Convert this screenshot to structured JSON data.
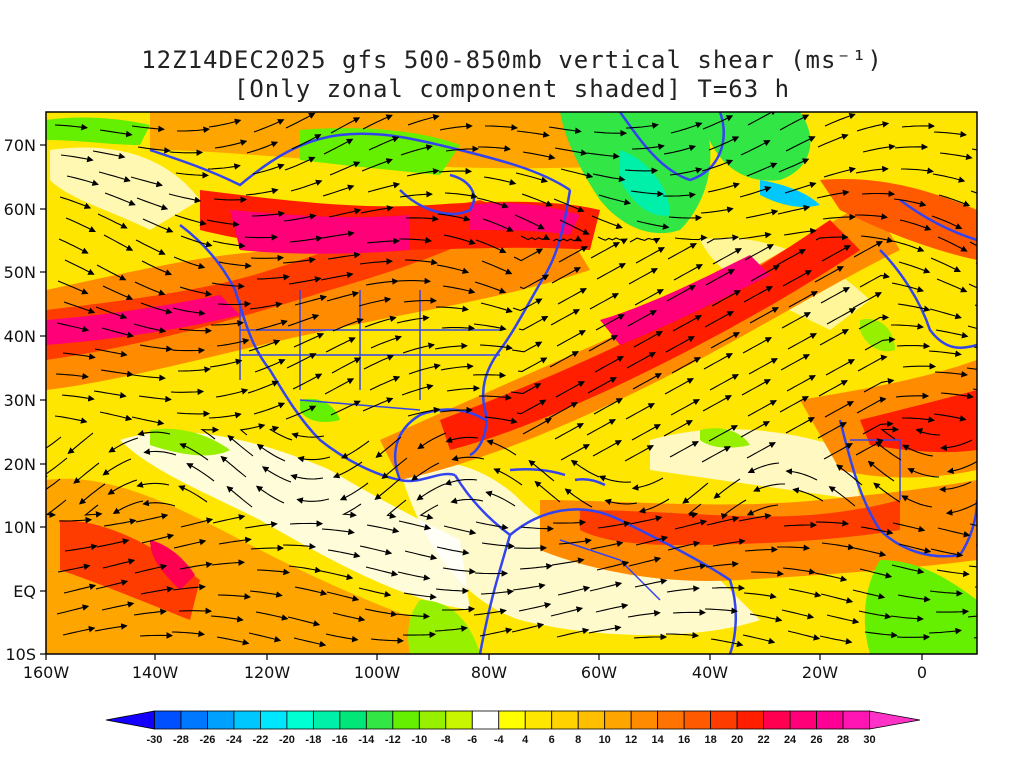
{
  "title": {
    "line1": "12Z14DEC2025 gfs 500-850mb vertical shear (ms⁻¹)",
    "line2": "[Only zonal component shaded] T=63 h"
  },
  "axes": {
    "lon_ticks": [
      "160W",
      "140W",
      "120W",
      "100W",
      "80W",
      "60W",
      "40W",
      "20W",
      "0"
    ],
    "lat_ticks": [
      "70N",
      "60N",
      "50N",
      "40N",
      "30N",
      "20N",
      "10N",
      "EQ",
      "10S"
    ]
  },
  "colorbar": {
    "labels": [
      "-30",
      "-28",
      "-26",
      "-24",
      "-22",
      "-20",
      "-18",
      "-16",
      "-14",
      "-12",
      "-10",
      "-8",
      "-6",
      "-4",
      "4",
      "6",
      "8",
      "10",
      "12",
      "14",
      "16",
      "18",
      "20",
      "22",
      "24",
      "26",
      "28",
      "30"
    ],
    "colors": [
      "#1400ff",
      "#0050ff",
      "#0078ff",
      "#00a0ff",
      "#00c8ff",
      "#00e6ff",
      "#00ffd2",
      "#00f0aa",
      "#00e678",
      "#32e646",
      "#64f000",
      "#96f000",
      "#c8f500",
      "#ffffff",
      "#ffff00",
      "#ffe600",
      "#ffd200",
      "#ffbe00",
      "#ffa500",
      "#ff8c00",
      "#ff7300",
      "#ff5a00",
      "#ff3c00",
      "#ff1e00",
      "#ff0050",
      "#ff0078",
      "#ff0096",
      "#ff14b4",
      "#ff32c8"
    ]
  },
  "colors": {
    "coastline": "#3344ee",
    "streamline": "#000000"
  }
}
